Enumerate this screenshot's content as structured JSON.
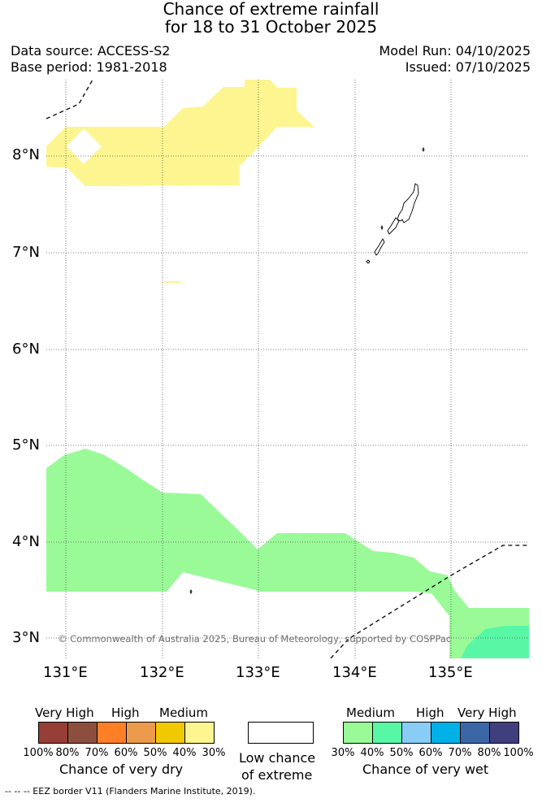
{
  "header": {
    "title_line1": "Chance of extreme rainfall",
    "title_line2": "for 18 to 31 October 2025",
    "data_source": "Data source: ACCESS-S2",
    "base_period": "Base period: 1981-2018",
    "model_run": "Model Run: 04/10/2025",
    "issued": "Issued: 07/10/2025"
  },
  "map": {
    "lat_labels": [
      "8°N",
      "7°N",
      "6°N",
      "5°N",
      "4°N",
      "3°N"
    ],
    "lon_labels": [
      "131°E",
      "132°E",
      "133°E",
      "134°E",
      "135°E"
    ],
    "copyright": "© Commonwealth of Australia 2025, Bureau of Meteorology, supported by COSPPac",
    "colors": {
      "very_dry_medium": "#fdf58f",
      "very_wet_medium": "#9afa98",
      "very_wet_40": "#58f7a6",
      "coastline": "#000000",
      "gridline": "#555555",
      "eez": "#000000"
    }
  },
  "legend": {
    "dry": {
      "groups": [
        "Very High",
        "High",
        "Medium"
      ],
      "colors": [
        "#963e35",
        "#8c4f3e",
        "#ff7f27",
        "#ec9b4c",
        "#f1c901",
        "#fdf58f"
      ],
      "ticks": [
        "100%",
        "80%",
        "70%",
        "60%",
        "50%",
        "40%",
        "30%"
      ],
      "caption": "Chance of very dry"
    },
    "neutral": {
      "color": "#ffffff",
      "caption_line1": "Low chance",
      "caption_line2": "of extreme"
    },
    "wet": {
      "groups": [
        "Medium",
        "High",
        "Very High"
      ],
      "colors": [
        "#9afa98",
        "#58f7a6",
        "#89cdf6",
        "#00b1e8",
        "#3a66a5",
        "#3f3f7e"
      ],
      "ticks": [
        "30%",
        "40%",
        "50%",
        "60%",
        "70%",
        "80%",
        "100%"
      ],
      "caption": "Chance of very wet"
    },
    "eez_note": "-- -- -- EEZ border V11 (Flanders Marine Institute, 2019)."
  }
}
